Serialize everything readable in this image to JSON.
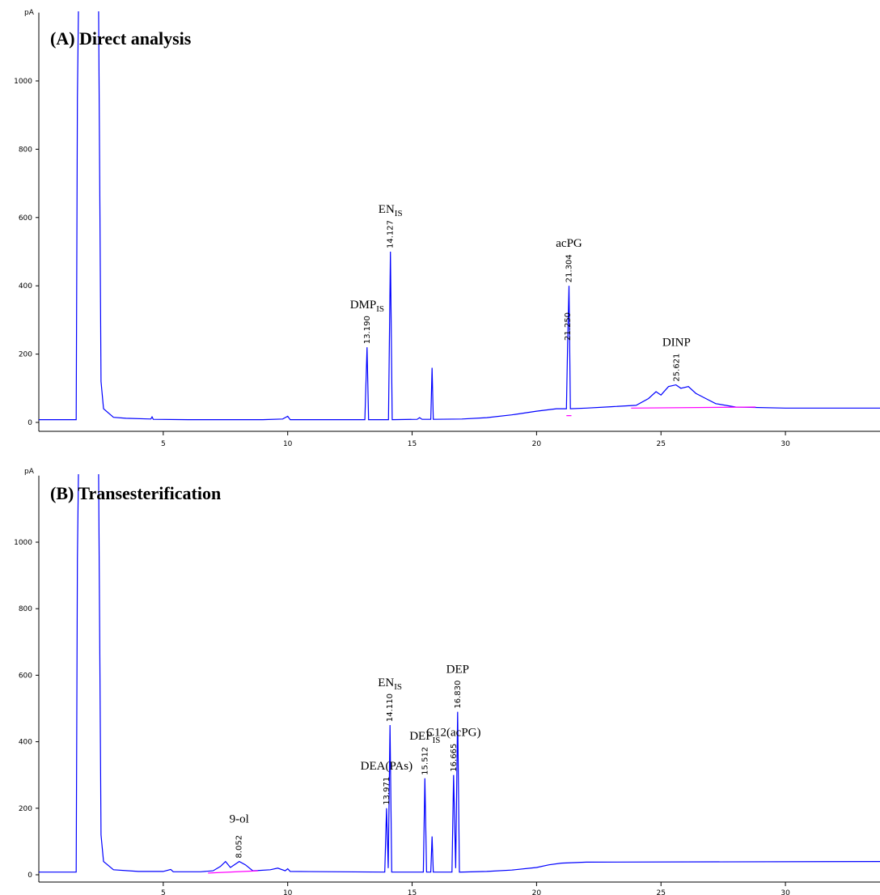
{
  "chart_data": [
    {
      "type": "line",
      "title": "(A) Direct analysis",
      "y_label": "pA",
      "xlim": [
        0,
        33.8
      ],
      "ylim": [
        -20,
        1200
      ],
      "xticks": [
        5,
        10,
        15,
        20,
        25,
        30
      ],
      "yticks": [
        0,
        200,
        400,
        600,
        800,
        1000
      ],
      "series": [
        {
          "color": "#0000ff",
          "x": [
            0,
            1.5,
            1.55,
            1.6,
            2.4,
            2.5,
            2.6,
            3,
            3.5,
            4.5,
            4.55,
            4.6,
            6,
            9,
            9.8,
            10,
            10.1,
            13.1,
            13.19,
            13.25,
            14.05,
            14.127,
            14.2,
            15.2,
            15.3,
            15.4,
            15.75,
            15.8,
            15.85,
            17,
            18,
            19,
            20,
            20.8,
            21.2,
            21.25,
            21.304,
            21.36,
            22,
            23,
            24,
            24.5,
            24.8,
            25,
            25.3,
            25.6,
            25.8,
            26.1,
            26.4,
            26.8,
            27.2,
            28,
            30,
            33.8
          ],
          "values": [
            8,
            8,
            950,
            1250,
            1250,
            120,
            40,
            15,
            12,
            10,
            16,
            9,
            8,
            8,
            10,
            18,
            8,
            8,
            220,
            8,
            8,
            500,
            8,
            9,
            14,
            9,
            9,
            160,
            9,
            10,
            14,
            22,
            33,
            40,
            40,
            230,
            400,
            40,
            42,
            46,
            50,
            70,
            90,
            80,
            105,
            110,
            100,
            105,
            85,
            70,
            55,
            45,
            42,
            42
          ]
        },
        {
          "color": "#ff00ff",
          "x": [
            21.2,
            21.4,
            null,
            23.8,
            28.8
          ],
          "values": [
            20,
            20,
            null,
            42,
            45
          ]
        }
      ],
      "peaks": [
        {
          "rt": {
            "value": 13.19,
            "label": "13.190"
          },
          "height": 220,
          "compound": "DMP",
          "sub": "IS"
        },
        {
          "rt": {
            "value": 14.127,
            "label": "14.127"
          },
          "height": 500,
          "compound": "EN",
          "sub": "IS"
        },
        {
          "rt": {
            "value": 21.25,
            "label": "21.250"
          },
          "height": 230
        },
        {
          "rt": {
            "value": 21.304,
            "label": "21.304"
          },
          "height": 400,
          "compound": "acPG"
        },
        {
          "rt": {
            "value": 25.621,
            "label": "25.621"
          },
          "height": 110,
          "compound": "DINP"
        }
      ]
    },
    {
      "type": "line",
      "title": "(B) Transesterification",
      "y_label": "pA",
      "xlim": [
        0,
        33.8
      ],
      "ylim": [
        -20,
        1200
      ],
      "xticks": [
        5,
        10,
        15,
        20,
        25,
        30
      ],
      "yticks": [
        0,
        200,
        400,
        600,
        800,
        1000
      ],
      "series": [
        {
          "color": "#0000ff",
          "x": [
            0,
            1.5,
            1.55,
            1.6,
            2.4,
            2.5,
            2.6,
            3,
            4,
            5,
            5.3,
            5.4,
            6.5,
            7,
            7.3,
            7.5,
            7.7,
            8.052,
            8.3,
            8.6,
            9.3,
            9.6,
            9.9,
            10,
            10.1,
            13.9,
            13.971,
            14.04,
            14.11,
            14.18,
            15.45,
            15.512,
            15.58,
            15.75,
            15.8,
            15.85,
            16.6,
            16.665,
            16.75,
            16.83,
            16.9,
            18,
            19,
            20,
            20.5,
            21,
            22,
            33.8
          ],
          "values": [
            8,
            8,
            950,
            1250,
            1250,
            120,
            40,
            15,
            10,
            10,
            16,
            9,
            9,
            12,
            25,
            40,
            22,
            40,
            30,
            12,
            15,
            20,
            12,
            18,
            10,
            8,
            200,
            20,
            450,
            8,
            8,
            290,
            8,
            8,
            115,
            8,
            8,
            300,
            20,
            490,
            8,
            10,
            14,
            22,
            30,
            35,
            38,
            40
          ]
        },
        {
          "color": "#ff00ff",
          "x": [
            6.8,
            8.8
          ],
          "values": [
            5,
            12
          ]
        }
      ],
      "peaks": [
        {
          "rt": {
            "value": 8.052,
            "label": "8.052"
          },
          "height": 40,
          "compound": "9-ol"
        },
        {
          "rt": {
            "value": 13.971,
            "label": "13.971"
          },
          "height": 200,
          "compound": "DEA(PAs)"
        },
        {
          "rt": {
            "value": 14.11,
            "label": "14.110"
          },
          "height": 450,
          "compound": "EN",
          "sub": "IS"
        },
        {
          "rt": {
            "value": 15.512,
            "label": "15.512"
          },
          "height": 290,
          "compound": "DEP",
          "sub": "IS"
        },
        {
          "rt": {
            "value": 16.665,
            "label": "16.665"
          },
          "height": 300,
          "compound": "C12(acPG)"
        },
        {
          "rt": {
            "value": 16.83,
            "label": "16.830"
          },
          "height": 490,
          "compound": "DEP"
        }
      ]
    }
  ]
}
